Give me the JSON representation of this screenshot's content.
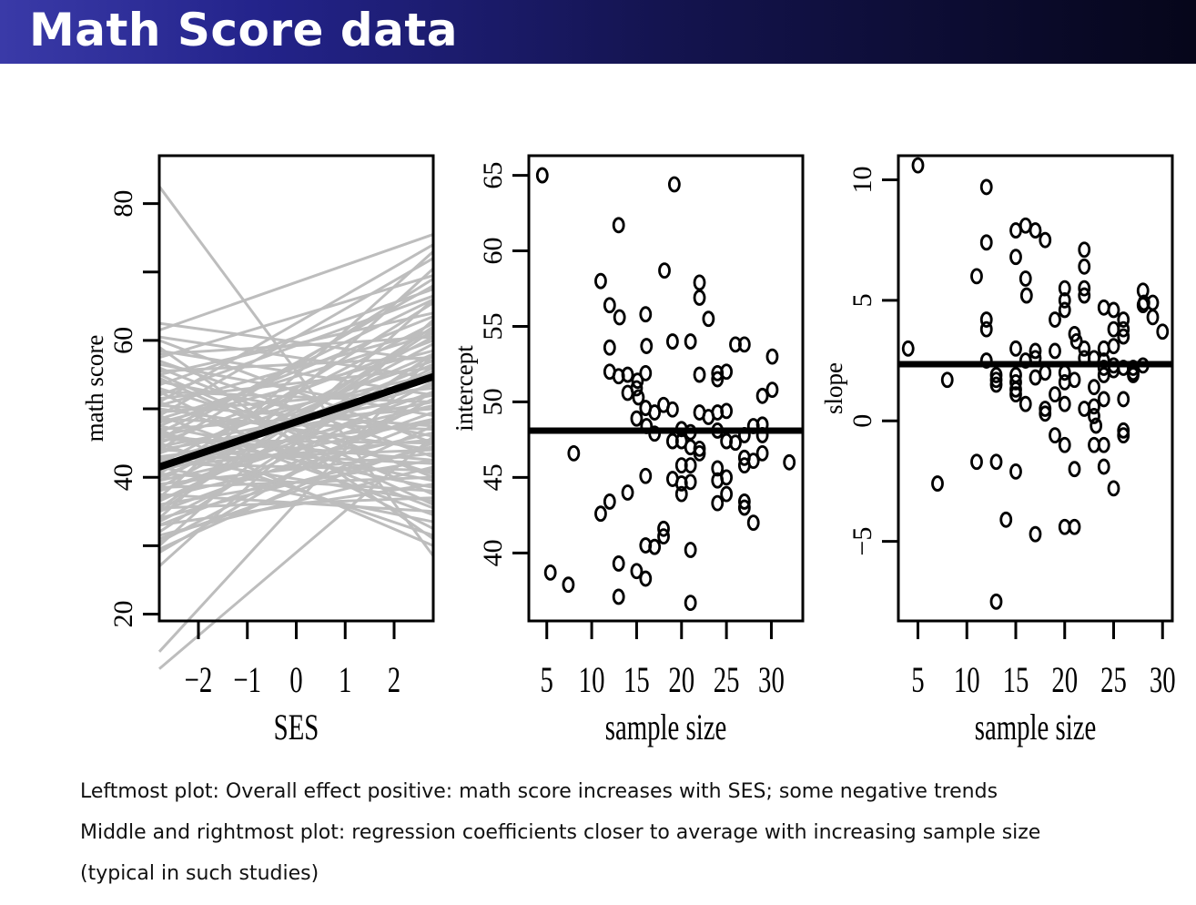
{
  "header": {
    "title": "Math Score data"
  },
  "captions": [
    "Leftmost plot: Overall effect positive: math score increases with SES; some negative trends",
    "Middle and rightmost plot: regression coefficients closer to average with increasing sample size",
    "(typical in such studies)"
  ],
  "colors": {
    "grey_lines": "#bdbdbd",
    "mean_line": "#000000",
    "title_bar_start": "#3a3aa8",
    "title_bar_end": "#06061a"
  },
  "chart_data": [
    {
      "type": "line",
      "xlabel": "SES",
      "ylabel": "math score",
      "xlim": [
        -2.8,
        2.8
      ],
      "ylim": [
        19,
        87
      ],
      "xticks": [
        -2,
        -1,
        0,
        1,
        2
      ],
      "xtick_labels": [
        "−2",
        "−1",
        "0",
        "1",
        "2"
      ],
      "yticks": [
        20,
        30,
        40,
        50,
        60,
        70,
        80
      ],
      "ytick_labels": [
        "20",
        "",
        "40",
        "",
        "60",
        "",
        "80"
      ],
      "mean_line": {
        "start": [
          -2.8,
          41.5
        ],
        "end": [
          2.8,
          54.7
        ]
      },
      "school_lines": [
        [
          82.5,
          28.5
        ],
        [
          61.5,
          75.5
        ],
        [
          51.0,
          74.0
        ],
        [
          57.5,
          69.5
        ],
        [
          49.0,
          72.0
        ],
        [
          44.0,
          69.0
        ],
        [
          53.5,
          67.5
        ],
        [
          46.5,
          66.0
        ],
        [
          40.5,
          65.5
        ],
        [
          55.0,
          64.0
        ],
        [
          47.5,
          63.5
        ],
        [
          42.0,
          62.5
        ],
        [
          35.5,
          62.0
        ],
        [
          50.5,
          61.5
        ],
        [
          58.0,
          60.5
        ],
        [
          45.0,
          60.0
        ],
        [
          38.5,
          59.5
        ],
        [
          48.0,
          58.5
        ],
        [
          32.0,
          58.0
        ],
        [
          55.5,
          57.5
        ],
        [
          43.5,
          57.0
        ],
        [
          40.0,
          56.5
        ],
        [
          51.5,
          56.0
        ],
        [
          36.5,
          55.5
        ],
        [
          46.0,
          55.0
        ],
        [
          60.5,
          54.5
        ],
        [
          33.5,
          54.0
        ],
        [
          42.5,
          53.5
        ],
        [
          49.5,
          53.0
        ],
        [
          38.0,
          52.5
        ],
        [
          44.5,
          52.0
        ],
        [
          30.5,
          51.5
        ],
        [
          52.5,
          51.0
        ],
        [
          41.0,
          50.5
        ],
        [
          47.0,
          50.0
        ],
        [
          35.0,
          49.5
        ],
        [
          56.5,
          49.0
        ],
        [
          39.5,
          48.5
        ],
        [
          43.0,
          48.0
        ],
        [
          29.5,
          47.5
        ],
        [
          48.5,
          47.0
        ],
        [
          37.0,
          46.5
        ],
        [
          54.0,
          46.0
        ],
        [
          41.5,
          45.5
        ],
        [
          45.5,
          45.0
        ],
        [
          34.0,
          44.5
        ],
        [
          50.0,
          44.0
        ],
        [
          39.0,
          43.5
        ],
        [
          57.0,
          43.0
        ],
        [
          36.0,
          42.5
        ],
        [
          44.0,
          42.0
        ],
        [
          31.5,
          41.5
        ],
        [
          42.0,
          41.0
        ],
        [
          53.0,
          40.5
        ],
        [
          38.5,
          40.0
        ],
        [
          47.5,
          39.5
        ],
        [
          33.0,
          39.0
        ],
        [
          46.5,
          38.5
        ],
        [
          40.5,
          38.0
        ],
        [
          55.0,
          37.5
        ],
        [
          35.5,
          37.0
        ],
        [
          43.0,
          36.5
        ],
        [
          51.0,
          35.5
        ],
        [
          37.5,
          35.0
        ],
        [
          49.0,
          34.5
        ],
        [
          41.5,
          33.5
        ],
        [
          52.5,
          32.5
        ],
        [
          45.0,
          31.5
        ],
        [
          59.0,
          31.0
        ],
        [
          47.0,
          30.0
        ],
        [
          14.5,
          58.0
        ],
        [
          12.0,
          46.0
        ],
        [
          27.0,
          63.0
        ],
        [
          30.0,
          66.0
        ],
        [
          34.0,
          70.5
        ],
        [
          37.0,
          73.0
        ],
        [
          62.5,
          57.0
        ],
        [
          58.5,
          52.0
        ],
        [
          60.0,
          45.0
        ],
        [
          56.0,
          40.0
        ],
        [
          54.5,
          36.0
        ],
        [
          39.5,
          60.5
        ],
        [
          33.0,
          48.5
        ],
        [
          45.5,
          68.0
        ],
        [
          50.5,
          47.5
        ],
        [
          44.0,
          51.0
        ],
        [
          36.5,
          56.0
        ],
        [
          31.0,
          45.0
        ],
        [
          48.5,
          61.0
        ],
        [
          42.5,
          44.0
        ],
        [
          41.0,
          58.0
        ],
        [
          29.0,
          52.5
        ],
        [
          52.0,
          66.5
        ],
        [
          46.0,
          42.5
        ],
        [
          38.0,
          50.5
        ],
        [
          35.0,
          61.5
        ]
      ]
    },
    {
      "type": "scatter",
      "xlabel": "sample size",
      "ylabel": "intercept",
      "xlim": [
        3.0,
        33.5
      ],
      "ylim": [
        35.5,
        66.3
      ],
      "xticks": [
        5,
        10,
        15,
        20,
        25,
        30
      ],
      "yticks": [
        40,
        45,
        50,
        55,
        60,
        65
      ],
      "reference_line": 48.1,
      "points": [
        [
          4.5,
          65.0
        ],
        [
          19.2,
          64.4
        ],
        [
          13.0,
          61.7
        ],
        [
          18.1,
          58.7
        ],
        [
          11.0,
          58.0
        ],
        [
          22.0,
          57.9
        ],
        [
          12.0,
          56.4
        ],
        [
          22.0,
          56.9
        ],
        [
          13.1,
          55.6
        ],
        [
          16.0,
          55.8
        ],
        [
          23.0,
          55.5
        ],
        [
          19.0,
          54.0
        ],
        [
          12.0,
          53.6
        ],
        [
          16.1,
          53.7
        ],
        [
          21.0,
          54.0
        ],
        [
          26.0,
          53.8
        ],
        [
          27.0,
          53.8
        ],
        [
          30.1,
          53.0
        ],
        [
          12.0,
          52.0
        ],
        [
          13.0,
          51.7
        ],
        [
          14.0,
          51.8
        ],
        [
          15.1,
          51.4
        ],
        [
          16.0,
          51.9
        ],
        [
          22.0,
          51.8
        ],
        [
          24.0,
          51.9
        ],
        [
          25.0,
          52.0
        ],
        [
          24.0,
          51.5
        ],
        [
          14.0,
          50.6
        ],
        [
          15.0,
          50.9
        ],
        [
          15.2,
          50.3
        ],
        [
          30.1,
          50.8
        ],
        [
          29.0,
          50.4
        ],
        [
          16.0,
          49.6
        ],
        [
          17.0,
          49.3
        ],
        [
          18.0,
          49.8
        ],
        [
          19.0,
          49.5
        ],
        [
          22.0,
          49.3
        ],
        [
          23.0,
          49.0
        ],
        [
          24.0,
          49.3
        ],
        [
          25.0,
          49.4
        ],
        [
          29.0,
          48.5
        ],
        [
          28.0,
          48.4
        ],
        [
          15.0,
          48.9
        ],
        [
          16.1,
          48.4
        ],
        [
          17.0,
          47.9
        ],
        [
          20.0,
          48.2
        ],
        [
          21.0,
          48.0
        ],
        [
          24.0,
          48.1
        ],
        [
          27.0,
          47.8
        ],
        [
          29.0,
          47.8
        ],
        [
          8.0,
          46.6
        ],
        [
          19.0,
          47.4
        ],
        [
          20.0,
          47.4
        ],
        [
          21.0,
          47.0
        ],
        [
          22.0,
          46.9
        ],
        [
          25.0,
          47.4
        ],
        [
          26.0,
          47.3
        ],
        [
          29.0,
          46.6
        ],
        [
          22.0,
          46.6
        ],
        [
          27.0,
          46.3
        ],
        [
          28.0,
          46.1
        ],
        [
          32.0,
          46.0
        ],
        [
          20.0,
          45.8
        ],
        [
          21.0,
          45.8
        ],
        [
          24.0,
          45.6
        ],
        [
          27.0,
          45.8
        ],
        [
          25.0,
          45.0
        ],
        [
          16.0,
          45.1
        ],
        [
          19.0,
          44.9
        ],
        [
          20.0,
          44.6
        ],
        [
          21.0,
          44.7
        ],
        [
          24.0,
          44.8
        ],
        [
          14.0,
          44.0
        ],
        [
          20.0,
          43.9
        ],
        [
          25.0,
          43.9
        ],
        [
          12.0,
          43.4
        ],
        [
          24.0,
          43.3
        ],
        [
          27.0,
          43.4
        ],
        [
          11.0,
          42.6
        ],
        [
          27.0,
          43.0
        ],
        [
          28.0,
          42.0
        ],
        [
          18.0,
          41.6
        ],
        [
          18.0,
          41.1
        ],
        [
          16.0,
          40.5
        ],
        [
          17.0,
          40.4
        ],
        [
          21.0,
          40.2
        ],
        [
          13.0,
          39.3
        ],
        [
          15.0,
          38.8
        ],
        [
          5.4,
          38.7
        ],
        [
          7.4,
          37.9
        ],
        [
          16.0,
          38.3
        ],
        [
          13.0,
          37.1
        ],
        [
          21.0,
          36.7
        ]
      ]
    },
    {
      "type": "scatter",
      "xlabel": "sample size",
      "ylabel": "slope",
      "xlim": [
        3.0,
        31.0
      ],
      "ylim": [
        -8.3,
        11.0
      ],
      "xticks": [
        5,
        10,
        15,
        20,
        25,
        30
      ],
      "yticks": [
        -5,
        0,
        5,
        10
      ],
      "ytick_labels": [
        "−5",
        "0",
        "5",
        "10"
      ],
      "reference_line": 2.35,
      "points": [
        [
          5.0,
          10.6
        ],
        [
          12.0,
          9.7
        ],
        [
          16.0,
          8.1
        ],
        [
          15.0,
          7.9
        ],
        [
          17.0,
          7.9
        ],
        [
          18.0,
          7.5
        ],
        [
          12.0,
          7.4
        ],
        [
          22.0,
          7.1
        ],
        [
          15.0,
          6.8
        ],
        [
          22.0,
          6.4
        ],
        [
          11.0,
          6.0
        ],
        [
          16.0,
          5.9
        ],
        [
          20.0,
          5.5
        ],
        [
          22.0,
          5.5
        ],
        [
          28.0,
          5.4
        ],
        [
          28.1,
          4.9
        ],
        [
          16.1,
          5.2
        ],
        [
          20.0,
          5.0
        ],
        [
          22.0,
          5.2
        ],
        [
          29.0,
          4.9
        ],
        [
          24.0,
          4.7
        ],
        [
          25.0,
          4.6
        ],
        [
          28.0,
          4.8
        ],
        [
          20.0,
          4.6
        ],
        [
          26.0,
          4.2
        ],
        [
          29.0,
          4.3
        ],
        [
          12.0,
          4.2
        ],
        [
          19.0,
          4.2
        ],
        [
          12.0,
          3.8
        ],
        [
          25.0,
          3.8
        ],
        [
          26.0,
          3.8
        ],
        [
          30.0,
          3.7
        ],
        [
          21.0,
          3.6
        ],
        [
          21.2,
          3.3
        ],
        [
          26.0,
          3.5
        ],
        [
          25.0,
          3.1
        ],
        [
          4.0,
          3.0
        ],
        [
          15.0,
          3.0
        ],
        [
          17.0,
          2.9
        ],
        [
          19.0,
          2.9
        ],
        [
          22.0,
          3.0
        ],
        [
          24.0,
          3.0
        ],
        [
          17.0,
          2.6
        ],
        [
          22.0,
          2.6
        ],
        [
          12.0,
          2.5
        ],
        [
          16.0,
          2.5
        ],
        [
          23.0,
          2.6
        ],
        [
          24.0,
          2.5
        ],
        [
          25.0,
          2.3
        ],
        [
          28.0,
          2.3
        ],
        [
          24.0,
          2.2
        ],
        [
          26.0,
          2.2
        ],
        [
          27.0,
          2.2
        ],
        [
          27.0,
          2.0
        ],
        [
          18.0,
          2.0
        ],
        [
          20.0,
          2.0
        ],
        [
          24.0,
          1.9
        ],
        [
          25.0,
          2.1
        ],
        [
          13.0,
          1.9
        ],
        [
          15.0,
          1.9
        ],
        [
          17.0,
          1.8
        ],
        [
          27.0,
          1.9
        ],
        [
          13.0,
          1.7
        ],
        [
          21.0,
          1.7
        ],
        [
          8.0,
          1.7
        ],
        [
          13.0,
          1.5
        ],
        [
          15.0,
          1.6
        ],
        [
          20.0,
          1.6
        ],
        [
          15.0,
          1.3
        ],
        [
          23.0,
          1.4
        ],
        [
          15.0,
          1.1
        ],
        [
          19.0,
          1.1
        ],
        [
          24.0,
          0.9
        ],
        [
          26.0,
          0.9
        ],
        [
          16.0,
          0.7
        ],
        [
          20.0,
          0.7
        ],
        [
          18.0,
          0.5
        ],
        [
          23.0,
          0.6
        ],
        [
          18.0,
          0.3
        ],
        [
          22.0,
          0.5
        ],
        [
          23.0,
          0.2
        ],
        [
          23.2,
          -0.2
        ],
        [
          26.0,
          -0.4
        ],
        [
          26.0,
          -0.6
        ],
        [
          19.0,
          -0.6
        ],
        [
          20.0,
          -1.0
        ],
        [
          23.0,
          -1.0
        ],
        [
          24.0,
          -1.0
        ],
        [
          11.0,
          -1.7
        ],
        [
          13.0,
          -1.7
        ],
        [
          24.0,
          -1.9
        ],
        [
          21.0,
          -2.0
        ],
        [
          15.0,
          -2.1
        ],
        [
          7.0,
          -2.6
        ],
        [
          25.0,
          -2.8
        ],
        [
          14.0,
          -4.1
        ],
        [
          20.0,
          -4.4
        ],
        [
          21.0,
          -4.4
        ],
        [
          17.0,
          -4.7
        ],
        [
          13.0,
          -7.5
        ]
      ]
    }
  ]
}
